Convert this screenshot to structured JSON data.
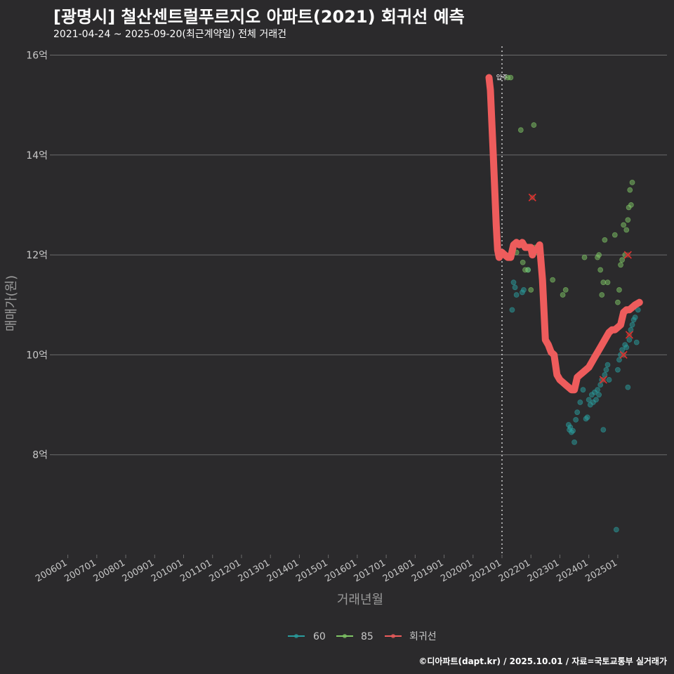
{
  "chart_data": {
    "type": "scatter",
    "title": "[광명시] 철산센트럴푸르지오 아파트(2021) 회귀선 예측",
    "subtitle": "2021-04-24 ~ 2025-09-20(최근계약일) 전체 거래건",
    "xlabel": "거래년월",
    "ylabel": "매매가(원)",
    "ylim": [
      6.0,
      16.4
    ],
    "xlim": [
      2005.5,
      2026.7
    ],
    "y_ticks": [
      {
        "value": 8,
        "label": "8억"
      },
      {
        "value": 10,
        "label": "10억"
      },
      {
        "value": 12,
        "label": "12억"
      },
      {
        "value": 14,
        "label": "14억"
      },
      {
        "value": 16,
        "label": "16억"
      }
    ],
    "x_ticks": [
      {
        "value": 2006.0,
        "label": "200601"
      },
      {
        "value": 2007.0,
        "label": "200701"
      },
      {
        "value": 2008.0,
        "label": "200801"
      },
      {
        "value": 2009.0,
        "label": "200901"
      },
      {
        "value": 2010.0,
        "label": "201001"
      },
      {
        "value": 2011.0,
        "label": "201101"
      },
      {
        "value": 2012.0,
        "label": "201201"
      },
      {
        "value": 2013.0,
        "label": "201301"
      },
      {
        "value": 2014.0,
        "label": "201401"
      },
      {
        "value": 2015.0,
        "label": "201501"
      },
      {
        "value": 2016.0,
        "label": "201601"
      },
      {
        "value": 2017.0,
        "label": "201701"
      },
      {
        "value": 2018.0,
        "label": "201801"
      },
      {
        "value": 2019.0,
        "label": "201901"
      },
      {
        "value": 2020.0,
        "label": "202001"
      },
      {
        "value": 2021.0,
        "label": "202101"
      },
      {
        "value": 2022.0,
        "label": "202201"
      },
      {
        "value": 2023.0,
        "label": "202301"
      },
      {
        "value": 2024.0,
        "label": "202401"
      },
      {
        "value": 2025.0,
        "label": "202501"
      }
    ],
    "move_in_line": {
      "x": 2021.0,
      "label": "입주"
    },
    "grid": true,
    "legend_position": "bottom",
    "series": [
      {
        "name": "60",
        "color": "#2a9d9e",
        "points": [
          [
            2021.35,
            10.9
          ],
          [
            2021.4,
            11.45
          ],
          [
            2021.45,
            11.35
          ],
          [
            2021.5,
            11.2
          ],
          [
            2021.7,
            11.25
          ],
          [
            2021.75,
            11.3
          ],
          [
            2021.9,
            11.7
          ],
          [
            2023.3,
            8.6
          ],
          [
            2023.33,
            8.5
          ],
          [
            2023.36,
            8.55
          ],
          [
            2023.4,
            8.45
          ],
          [
            2023.45,
            8.48
          ],
          [
            2023.5,
            8.25
          ],
          [
            2023.55,
            8.7
          ],
          [
            2023.6,
            8.85
          ],
          [
            2023.7,
            9.05
          ],
          [
            2023.8,
            9.3
          ],
          [
            2023.9,
            8.72
          ],
          [
            2023.95,
            8.75
          ],
          [
            2024.0,
            9.1
          ],
          [
            2024.05,
            9.0
          ],
          [
            2024.1,
            9.2
          ],
          [
            2024.15,
            9.05
          ],
          [
            2024.2,
            9.25
          ],
          [
            2024.25,
            9.1
          ],
          [
            2024.3,
            9.3
          ],
          [
            2024.35,
            9.2
          ],
          [
            2024.4,
            9.4
          ],
          [
            2024.45,
            9.5
          ],
          [
            2024.5,
            8.5
          ],
          [
            2024.55,
            9.6
          ],
          [
            2024.6,
            9.7
          ],
          [
            2024.65,
            9.8
          ],
          [
            2024.7,
            9.5
          ],
          [
            2024.95,
            6.5
          ],
          [
            2025.0,
            9.7
          ],
          [
            2025.05,
            9.9
          ],
          [
            2025.1,
            10.0
          ],
          [
            2025.15,
            10.1
          ],
          [
            2025.2,
            10.0
          ],
          [
            2025.25,
            10.2
          ],
          [
            2025.3,
            10.15
          ],
          [
            2025.35,
            9.35
          ],
          [
            2025.4,
            10.3
          ],
          [
            2025.45,
            10.5
          ],
          [
            2025.5,
            10.6
          ],
          [
            2025.55,
            10.7
          ],
          [
            2025.6,
            10.75
          ],
          [
            2025.65,
            10.25
          ],
          [
            2025.7,
            10.9
          ]
        ]
      },
      {
        "name": "85",
        "color": "#7fc665",
        "points": [
          [
            2021.2,
            15.55
          ],
          [
            2021.3,
            15.55
          ],
          [
            2021.5,
            12.05
          ],
          [
            2021.65,
            14.5
          ],
          [
            2021.72,
            11.85
          ],
          [
            2021.8,
            11.7
          ],
          [
            2021.9,
            11.7
          ],
          [
            2022.0,
            11.3
          ],
          [
            2022.1,
            14.6
          ],
          [
            2022.15,
            12.15
          ],
          [
            2022.2,
            12.05
          ],
          [
            2022.75,
            11.5
          ],
          [
            2023.1,
            11.2
          ],
          [
            2023.2,
            11.3
          ],
          [
            2023.85,
            11.95
          ],
          [
            2024.3,
            11.95
          ],
          [
            2024.35,
            12.0
          ],
          [
            2024.4,
            11.7
          ],
          [
            2024.45,
            11.2
          ],
          [
            2024.5,
            11.45
          ],
          [
            2024.55,
            12.3
          ],
          [
            2024.65,
            11.45
          ],
          [
            2024.9,
            12.4
          ],
          [
            2025.0,
            11.05
          ],
          [
            2025.05,
            11.3
          ],
          [
            2025.1,
            11.8
          ],
          [
            2025.15,
            11.9
          ],
          [
            2025.2,
            12.6
          ],
          [
            2025.25,
            12.0
          ],
          [
            2025.3,
            12.5
          ],
          [
            2025.35,
            12.7
          ],
          [
            2025.38,
            12.95
          ],
          [
            2025.42,
            13.3
          ],
          [
            2025.46,
            13.0
          ],
          [
            2025.5,
            13.45
          ]
        ]
      },
      {
        "name": "회귀선",
        "color": "#ee5c5c",
        "line": [
          [
            2020.55,
            15.55
          ],
          [
            2020.6,
            15.3
          ],
          [
            2020.7,
            14.0
          ],
          [
            2020.8,
            12.6
          ],
          [
            2020.85,
            12.1
          ],
          [
            2020.9,
            11.95
          ],
          [
            2021.0,
            12.05
          ],
          [
            2021.1,
            12.0
          ],
          [
            2021.2,
            11.95
          ],
          [
            2021.3,
            11.95
          ],
          [
            2021.4,
            12.2
          ],
          [
            2021.5,
            12.25
          ],
          [
            2021.6,
            12.2
          ],
          [
            2021.7,
            12.25
          ],
          [
            2021.8,
            12.15
          ],
          [
            2022.0,
            12.15
          ],
          [
            2022.05,
            12.0
          ],
          [
            2022.1,
            12.1
          ],
          [
            2022.2,
            12.1
          ],
          [
            2022.3,
            12.2
          ],
          [
            2022.4,
            11.5
          ],
          [
            2022.5,
            10.3
          ],
          [
            2022.6,
            10.2
          ],
          [
            2022.7,
            10.05
          ],
          [
            2022.8,
            10.0
          ],
          [
            2022.9,
            9.6
          ],
          [
            2023.0,
            9.5
          ],
          [
            2023.1,
            9.45
          ],
          [
            2023.2,
            9.4
          ],
          [
            2023.3,
            9.35
          ],
          [
            2023.4,
            9.3
          ],
          [
            2023.5,
            9.3
          ],
          [
            2023.6,
            9.55
          ],
          [
            2023.7,
            9.6
          ],
          [
            2023.8,
            9.65
          ],
          [
            2023.9,
            9.7
          ],
          [
            2024.0,
            9.75
          ],
          [
            2024.1,
            9.85
          ],
          [
            2024.2,
            9.95
          ],
          [
            2024.3,
            10.05
          ],
          [
            2024.4,
            10.15
          ],
          [
            2024.5,
            10.25
          ],
          [
            2024.6,
            10.35
          ],
          [
            2024.7,
            10.45
          ],
          [
            2024.8,
            10.5
          ],
          [
            2024.9,
            10.5
          ],
          [
            2025.0,
            10.55
          ],
          [
            2025.1,
            10.6
          ],
          [
            2025.2,
            10.85
          ],
          [
            2025.3,
            10.9
          ],
          [
            2025.4,
            10.9
          ],
          [
            2025.5,
            10.95
          ],
          [
            2025.6,
            11.0
          ],
          [
            2025.75,
            11.05
          ]
        ],
        "outliers": [
          [
            2022.05,
            13.15
          ],
          [
            2024.5,
            9.5
          ],
          [
            2025.2,
            10.0
          ],
          [
            2025.35,
            12.0
          ],
          [
            2025.4,
            10.4
          ]
        ]
      }
    ]
  },
  "credit": "©디아파트(dapt.kr) / 2025.10.01 / 자료=국토교통부 실거래가"
}
